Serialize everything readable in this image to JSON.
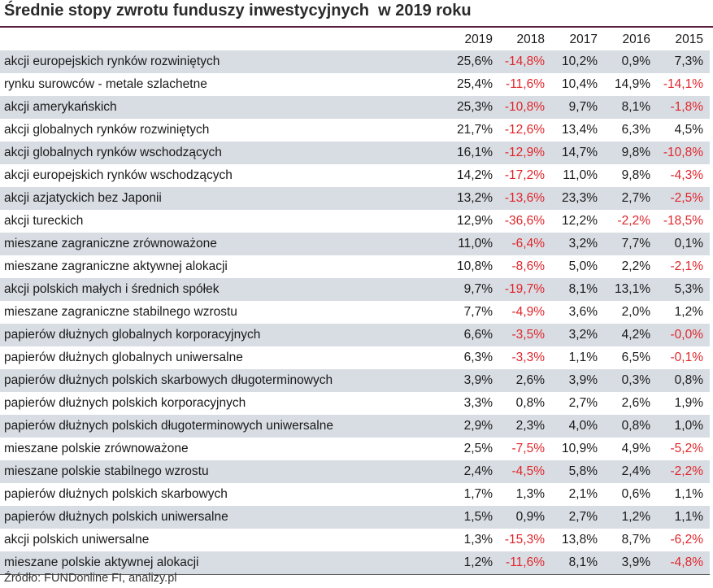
{
  "title": "Średnie stopy zwrotu funduszy inwestycyjnych  w 2019 roku",
  "colors": {
    "rule": "#5a1f3f",
    "row_shade": "#d8dde3",
    "negative": "#e0262b"
  },
  "table": {
    "years": [
      "2019",
      "2018",
      "2017",
      "2016",
      "2015"
    ],
    "rows": [
      {
        "name": "akcji europejskich rynków rozwiniętych",
        "values": [
          "25,6%",
          "-14,8%",
          "10,2%",
          "0,9%",
          "7,3%"
        ]
      },
      {
        "name": "rynku surowców - metale szlachetne",
        "values": [
          "25,4%",
          "-11,6%",
          "10,4%",
          "14,9%",
          "-14,1%"
        ]
      },
      {
        "name": "akcji amerykańskich",
        "values": [
          "25,3%",
          "-10,8%",
          "9,7%",
          "8,1%",
          "-1,8%"
        ]
      },
      {
        "name": "akcji globalnych rynków rozwiniętych",
        "values": [
          "21,7%",
          "-12,6%",
          "13,4%",
          "6,3%",
          "4,5%"
        ]
      },
      {
        "name": "akcji globalnych rynków wschodzących",
        "values": [
          "16,1%",
          "-12,9%",
          "14,7%",
          "9,8%",
          "-10,8%"
        ]
      },
      {
        "name": "akcji europejskich rynków wschodzących",
        "values": [
          "14,2%",
          "-17,2%",
          "11,0%",
          "9,8%",
          "-4,3%"
        ]
      },
      {
        "name": "akcji azjatyckich bez Japonii",
        "values": [
          "13,2%",
          "-13,6%",
          "23,3%",
          "2,7%",
          "-2,5%"
        ]
      },
      {
        "name": "akcji tureckich",
        "values": [
          "12,9%",
          "-36,6%",
          "12,2%",
          "-2,2%",
          "-18,5%"
        ]
      },
      {
        "name": "mieszane zagraniczne zrównoważone",
        "values": [
          "11,0%",
          "-6,4%",
          "3,2%",
          "7,7%",
          "0,1%"
        ]
      },
      {
        "name": "mieszane zagraniczne aktywnej alokacji",
        "values": [
          "10,8%",
          "-8,6%",
          "5,0%",
          "2,2%",
          "-2,1%"
        ]
      },
      {
        "name": "akcji polskich małych i średnich spółek",
        "values": [
          "9,7%",
          "-19,7%",
          "8,1%",
          "13,1%",
          "5,3%"
        ]
      },
      {
        "name": "mieszane zagraniczne stabilnego wzrostu",
        "values": [
          "7,7%",
          "-4,9%",
          "3,6%",
          "2,0%",
          "1,2%"
        ]
      },
      {
        "name": "papierów dłużnych globalnych korporacyjnych",
        "values": [
          "6,6%",
          "-3,5%",
          "3,2%",
          "4,2%",
          "-0,0%"
        ]
      },
      {
        "name": "papierów dłużnych globalnych uniwersalne",
        "values": [
          "6,3%",
          "-3,3%",
          "1,1%",
          "6,5%",
          "-0,1%"
        ]
      },
      {
        "name": "papierów dłużnych polskich skarbowych długoterminowych",
        "values": [
          "3,9%",
          "2,6%",
          "3,9%",
          "0,3%",
          "0,8%"
        ]
      },
      {
        "name": "papierów dłużnych polskich korporacyjnych",
        "values": [
          "3,3%",
          "0,8%",
          "2,7%",
          "2,6%",
          "1,9%"
        ]
      },
      {
        "name": "papierów dłużnych polskich długoterminowych uniwersalne",
        "values": [
          "2,9%",
          "2,3%",
          "4,0%",
          "0,8%",
          "1,0%"
        ]
      },
      {
        "name": "mieszane polskie zrównoważone",
        "values": [
          "2,5%",
          "-7,5%",
          "10,9%",
          "4,9%",
          "-5,2%"
        ]
      },
      {
        "name": "mieszane polskie stabilnego wzrostu",
        "values": [
          "2,4%",
          "-4,5%",
          "5,8%",
          "2,4%",
          "-2,2%"
        ]
      },
      {
        "name": "papierów dłużnych polskich skarbowych",
        "values": [
          "1,7%",
          "1,3%",
          "2,1%",
          "0,6%",
          "1,1%"
        ]
      },
      {
        "name": "papierów dłużnych polskich uniwersalne",
        "values": [
          "1,5%",
          "0,9%",
          "2,7%",
          "1,2%",
          "1,1%"
        ]
      },
      {
        "name": "akcji polskich uniwersalne",
        "values": [
          "1,3%",
          "-15,3%",
          "13,8%",
          "8,7%",
          "-6,2%"
        ]
      },
      {
        "name": "mieszane polskie aktywnej alokacji",
        "values": [
          "1,2%",
          "-11,6%",
          "8,1%",
          "3,9%",
          "-4,8%"
        ]
      }
    ]
  },
  "source": "Źródło: FUNDonline FI, analizy.pl"
}
